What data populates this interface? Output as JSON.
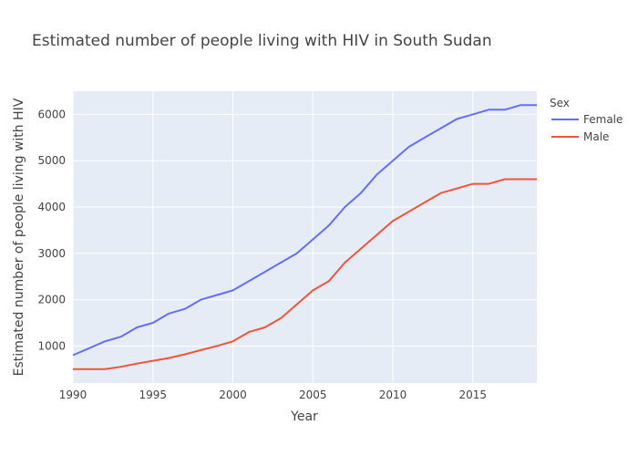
{
  "chart_data": {
    "type": "line",
    "title": "Estimated number of people living with HIV in South Sudan",
    "xlabel": "Year",
    "ylabel": "Estimated number of people living with HIV",
    "legend_title": "Sex",
    "legend_position": "top-right",
    "grid": true,
    "xlim": [
      1990,
      2019
    ],
    "ylim": [
      200,
      6500
    ],
    "x_ticks": [
      1990,
      1995,
      2000,
      2005,
      2010,
      2015
    ],
    "y_ticks": [
      1000,
      2000,
      3000,
      4000,
      5000,
      6000
    ],
    "x": [
      1990,
      1991,
      1992,
      1993,
      1994,
      1995,
      1996,
      1997,
      1998,
      1999,
      2000,
      2001,
      2002,
      2003,
      2004,
      2005,
      2006,
      2007,
      2008,
      2009,
      2010,
      2011,
      2012,
      2013,
      2014,
      2015,
      2016,
      2017,
      2018,
      2019
    ],
    "series": [
      {
        "name": "Female",
        "color": "#636efa",
        "values": [
          800,
          950,
          1100,
          1200,
          1400,
          1500,
          1700,
          1800,
          2000,
          2100,
          2200,
          2400,
          2600,
          2800,
          3000,
          3300,
          3600,
          4000,
          4300,
          4700,
          5000,
          5300,
          5500,
          5700,
          5900,
          6000,
          6100,
          6100,
          6200,
          6200
        ]
      },
      {
        "name": "Male",
        "color": "#ef553b",
        "values": [
          500,
          500,
          500,
          550,
          620,
          680,
          740,
          820,
          910,
          1000,
          1100,
          1300,
          1400,
          1600,
          1900,
          2200,
          2400,
          2800,
          3100,
          3400,
          3700,
          3900,
          4100,
          4300,
          4400,
          4500,
          4500,
          4600,
          4600,
          4600
        ]
      }
    ]
  },
  "colors": {
    "plot_background": "#e5ecf6",
    "gridline": "#ffffff"
  }
}
